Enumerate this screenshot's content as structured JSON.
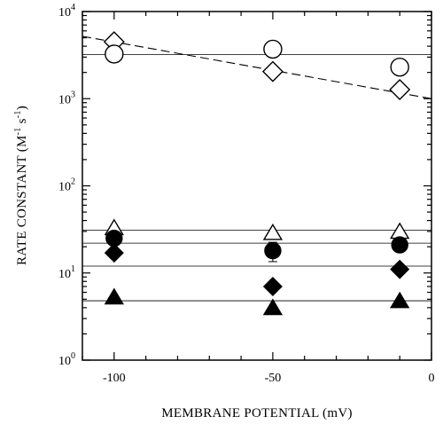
{
  "chart_data": {
    "type": "scatter",
    "xlabel": "MEMBRANE POTENTIAL (mV)",
    "ylabel_parts": [
      "RATE CONSTANT (M",
      "-1",
      " s",
      "-1",
      ")"
    ],
    "x_range": [
      -110,
      0
    ],
    "y_range": [
      1,
      10000
    ],
    "y_scale": "log",
    "x_ticks": [
      -100,
      -50,
      0
    ],
    "x_tick_labels": [
      "-100",
      "-50",
      "0"
    ],
    "y_ticks": [
      1,
      10,
      100,
      1000,
      10000
    ],
    "y_tick_labels": [
      {
        "base": "10",
        "exp": "0"
      },
      {
        "base": "10",
        "exp": "1"
      },
      {
        "base": "10",
        "exp": "2"
      },
      {
        "base": "10",
        "exp": "3"
      },
      {
        "base": "10",
        "exp": "4"
      }
    ],
    "grid": false,
    "series": [
      {
        "marker": "diamond",
        "filled": false,
        "points": [
          [
            -100,
            4500
          ],
          [
            -50,
            2050
          ],
          [
            -10,
            1270
          ]
        ]
      },
      {
        "marker": "circle",
        "filled": false,
        "points": [
          [
            -100,
            3250
          ],
          [
            -50,
            3700
          ],
          [
            -10,
            2300
          ]
        ]
      },
      {
        "marker": "triangle",
        "filled": false,
        "points": [
          [
            -100,
            33
          ],
          [
            -50,
            29
          ],
          [
            -10,
            30
          ]
        ]
      },
      {
        "marker": "circle",
        "filled": true,
        "points": [
          [
            -100,
            25
          ],
          [
            -50,
            18
          ],
          [
            -10,
            21
          ]
        ],
        "error_bars": [
          0,
          4.5,
          0
        ]
      },
      {
        "marker": "diamond",
        "filled": true,
        "points": [
          [
            -100,
            17
          ],
          [
            -50,
            7
          ],
          [
            -10,
            11
          ]
        ]
      },
      {
        "marker": "triangle",
        "filled": true,
        "points": [
          [
            -100,
            5.3
          ],
          [
            -50,
            4.0
          ],
          [
            -10,
            4.8
          ]
        ]
      }
    ],
    "fit_lines": [
      {
        "style": "dashed",
        "from": [
          -110,
          5200
        ],
        "to": [
          0,
          1000
        ]
      },
      {
        "style": "solid",
        "from": [
          -110,
          3200
        ],
        "to": [
          0,
          3200
        ]
      },
      {
        "style": "solid",
        "from": [
          -110,
          31
        ],
        "to": [
          0,
          31
        ]
      },
      {
        "style": "solid",
        "from": [
          -110,
          22
        ],
        "to": [
          0,
          22
        ]
      },
      {
        "style": "solid",
        "from": [
          -110,
          12
        ],
        "to": [
          0,
          12
        ]
      },
      {
        "style": "solid",
        "from": [
          -110,
          4.8
        ],
        "to": [
          0,
          4.8
        ]
      }
    ]
  }
}
